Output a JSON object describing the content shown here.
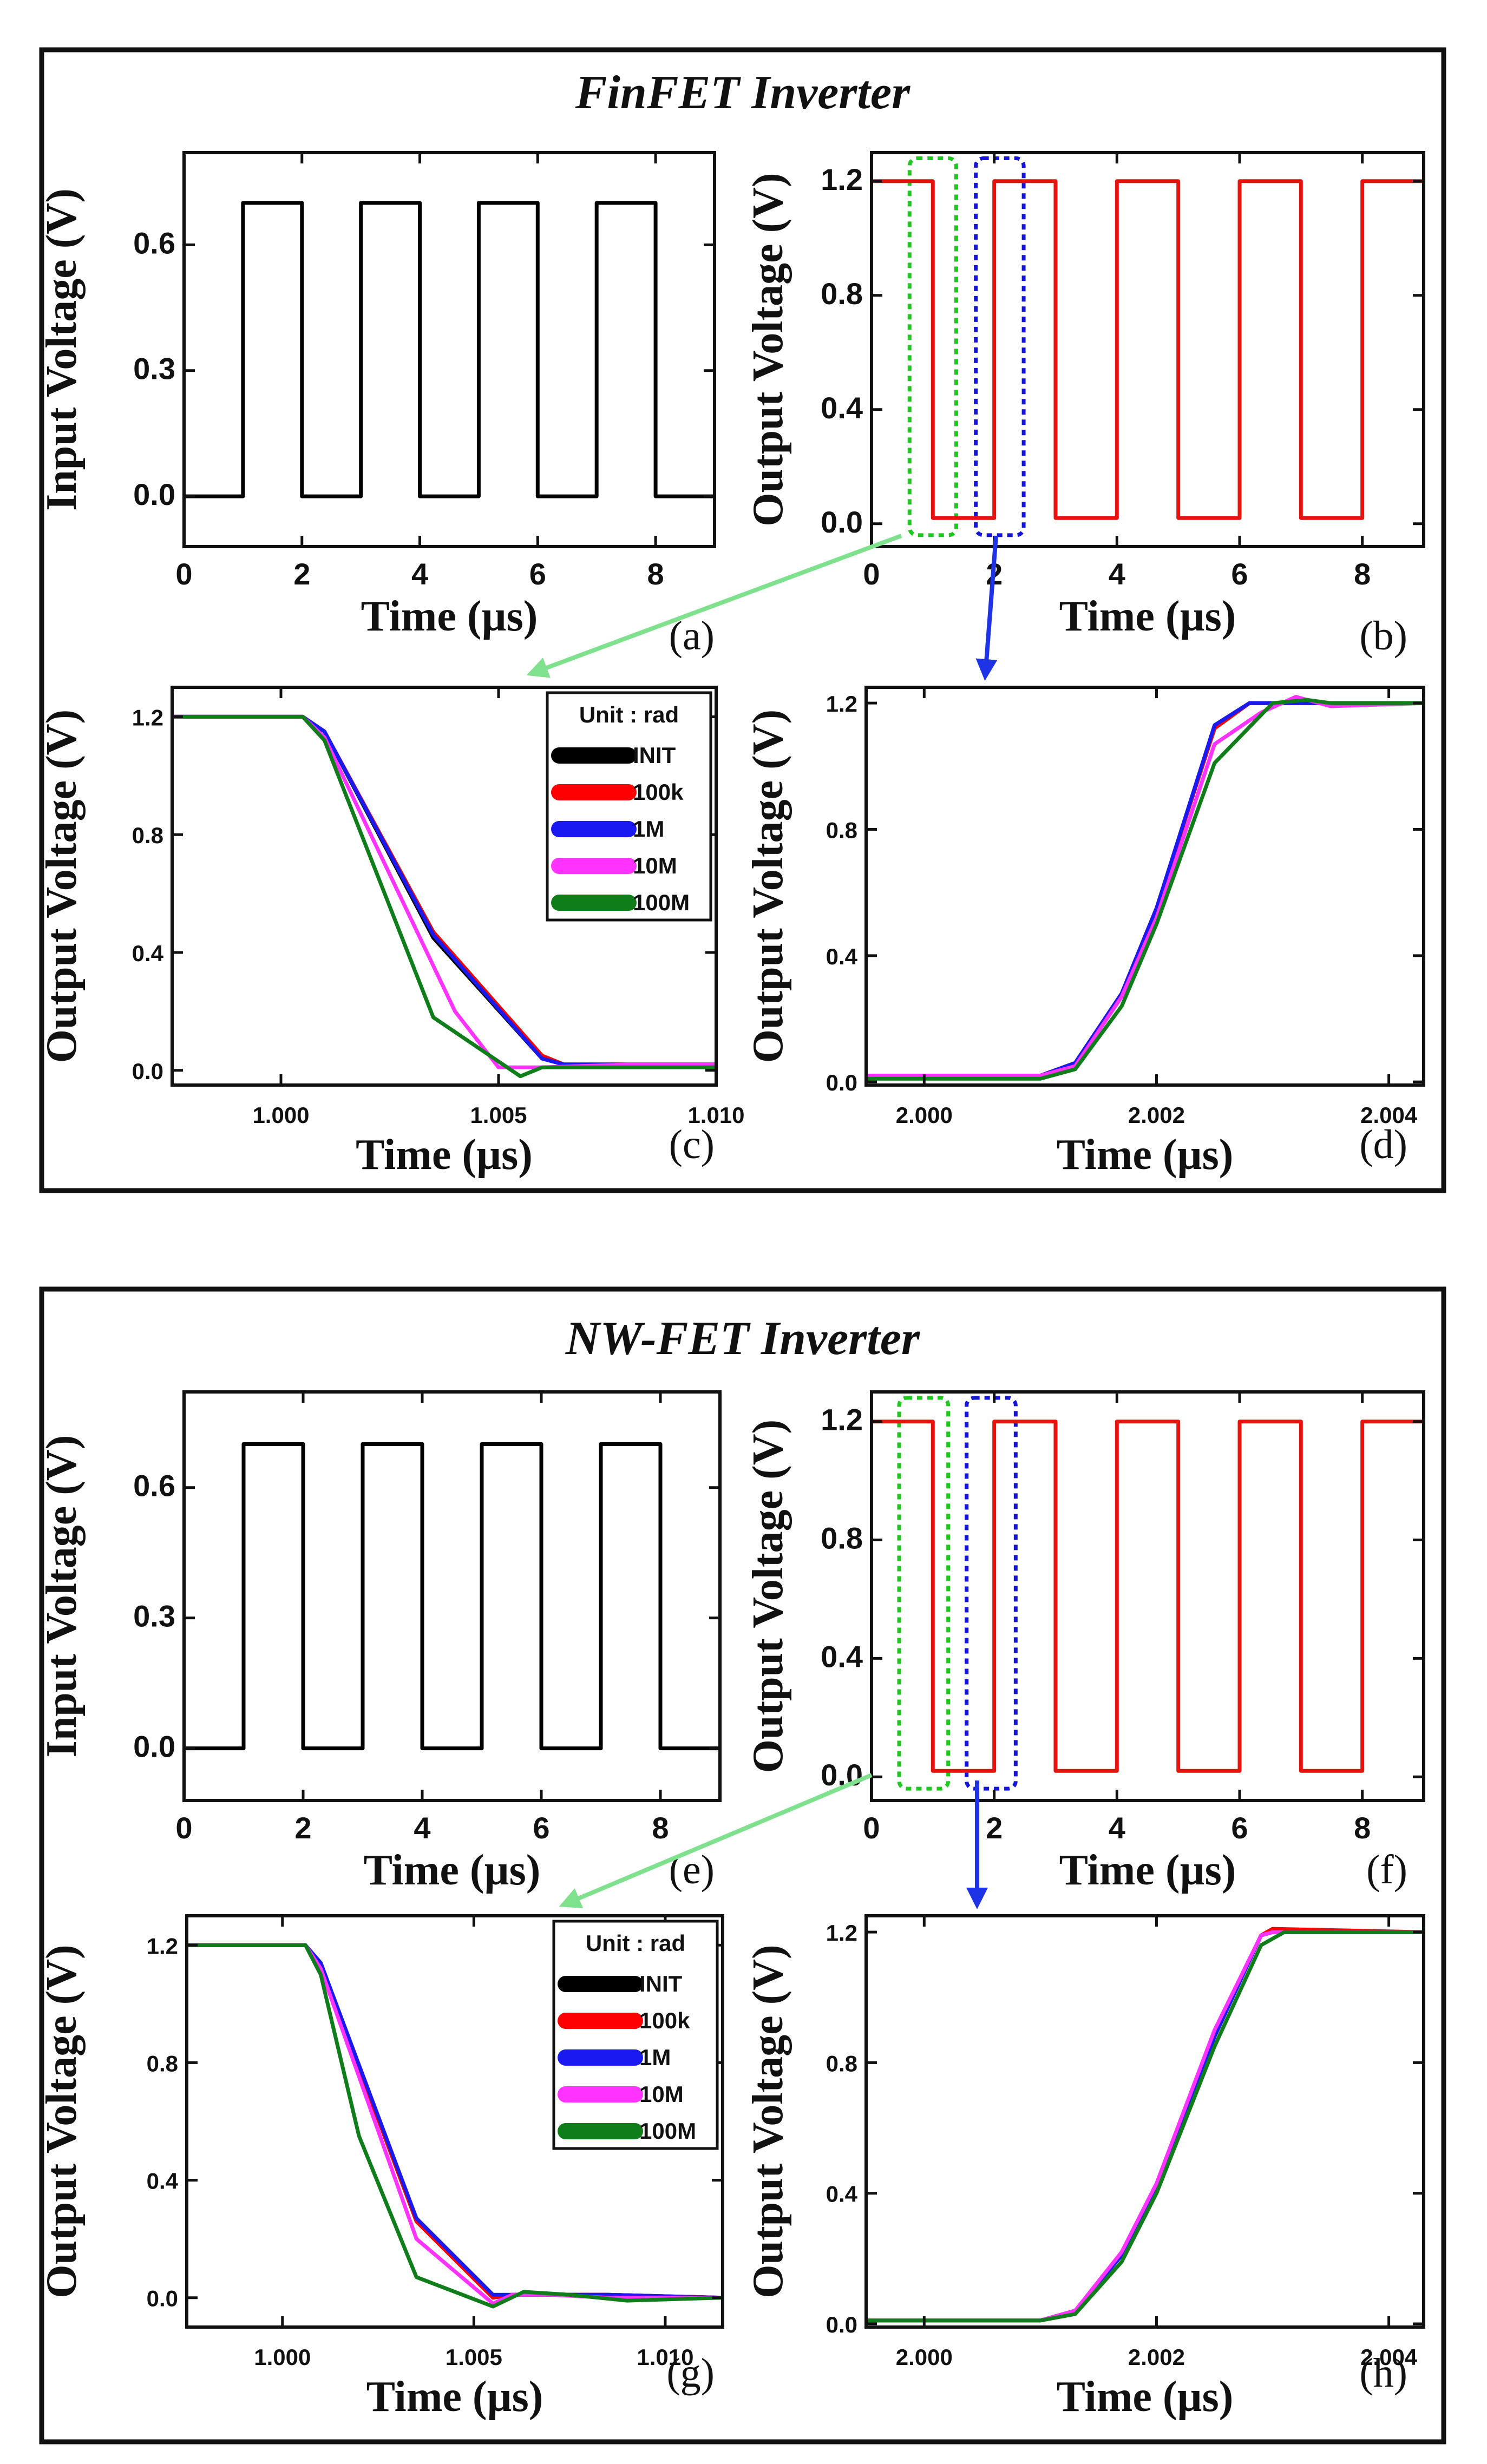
{
  "sections": [
    {
      "title": "FinFET Inverter"
    },
    {
      "title": "NW-FET Inverter"
    }
  ],
  "colors": {
    "input": "#000000",
    "output": "#e8130f",
    "zoom_fall_box": "#1ec81e",
    "zoom_rise_box": "#1515d8",
    "arrow_fall": "#7fe08d",
    "arrow_rise": "#1f33e6"
  },
  "legend": {
    "title": "Unit : rad",
    "entries": [
      {
        "name": "INIT",
        "color": "#000000"
      },
      {
        "name": "100k",
        "color": "#ff0000"
      },
      {
        "name": "1M",
        "color": "#1a1af0"
      },
      {
        "name": "10M",
        "color": "#ff33ff"
      },
      {
        "name": "100M",
        "color": "#0f7d19"
      }
    ]
  },
  "chart_data": [
    {
      "panel": "(a)",
      "type": "line",
      "xlabel": "Time (µs)",
      "ylabel": "Input Voltage (V)",
      "xlim": [
        0,
        9
      ],
      "ylim": [
        -0.12,
        0.82
      ],
      "xticks": [
        0,
        2,
        4,
        6,
        8
      ],
      "xtick_labels": [
        "0",
        "2",
        "4",
        "6",
        "8"
      ],
      "yticks": [
        0,
        0.3,
        0.6
      ],
      "ytick_labels": [
        "0.0",
        "0.3",
        "0.6"
      ],
      "series": [
        {
          "name": "Input",
          "color": "#000000",
          "x": [
            0,
            1,
            1,
            2,
            2,
            3,
            3,
            4,
            4,
            5,
            5,
            6,
            6,
            7,
            7,
            8,
            8,
            9
          ],
          "y": [
            0,
            0,
            0.7,
            0.7,
            0,
            0,
            0.7,
            0.7,
            0,
            0,
            0.7,
            0.7,
            0,
            0,
            0.7,
            0.7,
            0,
            0
          ]
        }
      ]
    },
    {
      "panel": "(b)",
      "type": "line",
      "xlabel": "Time (µs)",
      "ylabel": "Output Voltage (V)",
      "xlim": [
        0,
        9
      ],
      "ylim": [
        -0.08,
        1.3
      ],
      "xticks": [
        0,
        2,
        4,
        6,
        8
      ],
      "xtick_labels": [
        "0",
        "2",
        "4",
        "6",
        "8"
      ],
      "yticks": [
        0,
        0.4,
        0.8,
        1.2
      ],
      "ytick_labels": [
        "0.0",
        "0.4",
        "0.8",
        "1.2"
      ],
      "series": [
        {
          "name": "Output",
          "color": "#e8130f",
          "x": [
            0,
            1,
            1,
            2,
            2,
            3,
            3,
            4,
            4,
            5,
            5,
            6,
            6,
            7,
            7,
            8,
            8,
            9
          ],
          "y": [
            1.2,
            1.2,
            0.02,
            0.02,
            1.2,
            1.2,
            0.02,
            0.02,
            1.2,
            1.2,
            0.02,
            0.02,
            1.2,
            1.2,
            0.02,
            0.02,
            1.2,
            1.2
          ]
        }
      ],
      "zoom_boxes": [
        {
          "x": [
            0.62,
            1.38
          ],
          "y": [
            -0.04,
            1.28
          ],
          "target": "(c)"
        },
        {
          "x": [
            1.7,
            2.48
          ],
          "y": [
            -0.04,
            1.28
          ],
          "target": "(d)"
        }
      ]
    },
    {
      "panel": "(c)",
      "type": "line",
      "xlabel": "Time (µs)",
      "ylabel": "Output Voltage (V)",
      "xlim": [
        0.9975,
        1.01
      ],
      "ylim": [
        -0.05,
        1.3
      ],
      "xticks": [
        1.0,
        1.005,
        1.01
      ],
      "xtick_labels": [
        "1.000",
        "1.005",
        "1.010"
      ],
      "yticks": [
        0,
        0.4,
        0.8,
        1.2
      ],
      "ytick_labels": [
        "0.0",
        "0.4",
        "0.8",
        "1.2"
      ],
      "legend": true,
      "series": [
        {
          "name": "INIT",
          "color": "#000000",
          "x": [
            0.9975,
            1.0005,
            1.001,
            1.0035,
            1.006,
            1.0065,
            1.008,
            1.01
          ],
          "y": [
            1.2,
            1.2,
            1.15,
            0.45,
            0.04,
            0.02,
            0.02,
            0.02
          ]
        },
        {
          "name": "100k",
          "color": "#ff0000",
          "x": [
            0.9975,
            1.0005,
            1.001,
            1.0035,
            1.006,
            1.0065,
            1.008,
            1.01
          ],
          "y": [
            1.2,
            1.2,
            1.15,
            0.47,
            0.05,
            0.02,
            0.02,
            0.02
          ]
        },
        {
          "name": "1M",
          "color": "#1a1af0",
          "x": [
            0.9975,
            1.0005,
            1.001,
            1.0035,
            1.006,
            1.0065,
            1.008,
            1.01
          ],
          "y": [
            1.2,
            1.2,
            1.15,
            0.46,
            0.04,
            0.02,
            0.02,
            0.02
          ]
        },
        {
          "name": "10M",
          "color": "#ff33ff",
          "x": [
            0.9975,
            1.0005,
            1.001,
            1.004,
            1.005,
            1.006,
            1.008,
            1.01
          ],
          "y": [
            1.2,
            1.2,
            1.13,
            0.2,
            0.01,
            0.01,
            0.02,
            0.02
          ]
        },
        {
          "name": "100M",
          "color": "#0f7d19",
          "x": [
            0.9975,
            1.0005,
            1.001,
            1.0035,
            1.0055,
            1.006,
            1.008,
            1.01
          ],
          "y": [
            1.2,
            1.2,
            1.12,
            0.18,
            -0.02,
            0.01,
            0.01,
            0.01
          ]
        }
      ]
    },
    {
      "panel": "(d)",
      "type": "line",
      "xlabel": "Time (µs)",
      "ylabel": "Output Voltage (V)",
      "xlim": [
        1.9995,
        2.0043
      ],
      "ylim": [
        -0.01,
        1.25
      ],
      "xticks": [
        2.0,
        2.002,
        2.004
      ],
      "xtick_labels": [
        "2.000",
        "2.002",
        "2.004"
      ],
      "yticks": [
        0,
        0.4,
        0.8,
        1.2
      ],
      "ytick_labels": [
        "0.0",
        "0.4",
        "0.8",
        "1.2"
      ],
      "series": [
        {
          "name": "INIT",
          "color": "#000000",
          "x": [
            1.9995,
            2.001,
            2.0013,
            2.0017,
            2.002,
            2.0025,
            2.0028,
            2.003,
            2.0035,
            2.0043
          ],
          "y": [
            0.02,
            0.02,
            0.06,
            0.28,
            0.55,
            1.12,
            1.2,
            1.2,
            1.2,
            1.2
          ]
        },
        {
          "name": "100k",
          "color": "#ff0000",
          "x": [
            1.9995,
            2.001,
            2.0013,
            2.0017,
            2.002,
            2.0025,
            2.0028,
            2.003,
            2.0035,
            2.0043
          ],
          "y": [
            0.02,
            0.02,
            0.06,
            0.28,
            0.55,
            1.12,
            1.2,
            1.2,
            1.2,
            1.2
          ]
        },
        {
          "name": "1M",
          "color": "#1a1af0",
          "x": [
            1.9995,
            2.001,
            2.0013,
            2.0017,
            2.002,
            2.0025,
            2.0028,
            2.003,
            2.0035,
            2.0043
          ],
          "y": [
            0.02,
            0.02,
            0.06,
            0.28,
            0.55,
            1.13,
            1.2,
            1.2,
            1.2,
            1.2
          ]
        },
        {
          "name": "10M",
          "color": "#ff33ff",
          "x": [
            1.9995,
            2.001,
            2.0013,
            2.0017,
            2.002,
            2.0025,
            2.0029,
            2.0032,
            2.0035,
            2.0043
          ],
          "y": [
            0.02,
            0.02,
            0.05,
            0.27,
            0.52,
            1.07,
            1.17,
            1.22,
            1.19,
            1.2
          ]
        },
        {
          "name": "100M",
          "color": "#0f7d19",
          "x": [
            1.9995,
            2.001,
            2.0013,
            2.0017,
            2.002,
            2.0025,
            2.003,
            2.0033,
            2.0035,
            2.0043
          ],
          "y": [
            0.01,
            0.01,
            0.04,
            0.24,
            0.5,
            1.01,
            1.2,
            1.21,
            1.2,
            1.2
          ]
        }
      ]
    },
    {
      "panel": "(e)",
      "type": "line",
      "xlabel": "Time (µs)",
      "ylabel": "Input Voltage (V)",
      "xlim": [
        0,
        9
      ],
      "ylim": [
        -0.12,
        0.82
      ],
      "xticks": [
        0,
        2,
        4,
        6,
        8
      ],
      "xtick_labels": [
        "0",
        "2",
        "4",
        "6",
        "8"
      ],
      "yticks": [
        0,
        0.3,
        0.6
      ],
      "ytick_labels": [
        "0.0",
        "0.3",
        "0.6"
      ],
      "series": [
        {
          "name": "Input",
          "color": "#000000",
          "x": [
            0,
            1,
            1,
            2,
            2,
            3,
            3,
            4,
            4,
            5,
            5,
            6,
            6,
            7,
            7,
            8,
            8,
            9
          ],
          "y": [
            0,
            0,
            0.7,
            0.7,
            0,
            0,
            0.7,
            0.7,
            0,
            0,
            0.7,
            0.7,
            0,
            0,
            0.7,
            0.7,
            0,
            0
          ]
        }
      ]
    },
    {
      "panel": "(f)",
      "type": "line",
      "xlabel": "Time (µs)",
      "ylabel": "Output Voltage (V)",
      "xlim": [
        0,
        9
      ],
      "ylim": [
        -0.08,
        1.3
      ],
      "xticks": [
        0,
        2,
        4,
        6,
        8
      ],
      "xtick_labels": [
        "0",
        "2",
        "4",
        "6",
        "8"
      ],
      "yticks": [
        0,
        0.4,
        0.8,
        1.2
      ],
      "ytick_labels": [
        "0.0",
        "0.4",
        "0.8",
        "1.2"
      ],
      "series": [
        {
          "name": "Output",
          "color": "#e8130f",
          "x": [
            0,
            1,
            1,
            2,
            2,
            3,
            3,
            4,
            4,
            5,
            5,
            6,
            6,
            7,
            7,
            8,
            8,
            9
          ],
          "y": [
            1.2,
            1.2,
            0.02,
            0.02,
            1.2,
            1.2,
            0.02,
            0.02,
            1.2,
            1.2,
            0.02,
            0.02,
            1.2,
            1.2,
            0.02,
            0.02,
            1.2,
            1.2
          ]
        }
      ],
      "zoom_boxes": [
        {
          "x": [
            0.45,
            1.25
          ],
          "y": [
            -0.04,
            1.28
          ],
          "target": "(g)"
        },
        {
          "x": [
            1.55,
            2.35
          ],
          "y": [
            -0.04,
            1.28
          ],
          "target": "(h)"
        }
      ]
    },
    {
      "panel": "(g)",
      "type": "line",
      "xlabel": "Time (µs)",
      "ylabel": "Output Voltage (V)",
      "xlim": [
        0.9975,
        1.0115
      ],
      "ylim": [
        -0.1,
        1.3
      ],
      "xticks": [
        1.0,
        1.005,
        1.01
      ],
      "xtick_labels": [
        "1.000",
        "1.005",
        "1.010"
      ],
      "yticks": [
        0,
        0.4,
        0.8,
        1.2
      ],
      "ytick_labels": [
        "0.0",
        "0.4",
        "0.8",
        "1.2"
      ],
      "legend": true,
      "series": [
        {
          "name": "INIT",
          "color": "#000000",
          "x": [
            0.9975,
            1.0006,
            1.001,
            1.0035,
            1.0055,
            1.006,
            1.007,
            1.0085,
            1.0115
          ],
          "y": [
            1.2,
            1.2,
            1.13,
            0.26,
            0.0,
            0.01,
            0.01,
            0.01,
            0.0
          ]
        },
        {
          "name": "100k",
          "color": "#ff0000",
          "x": [
            0.9975,
            1.0006,
            1.001,
            1.0035,
            1.0055,
            1.006,
            1.007,
            1.0085,
            1.0115
          ],
          "y": [
            1.2,
            1.2,
            1.13,
            0.26,
            0.0,
            0.01,
            0.01,
            0.01,
            0.0
          ]
        },
        {
          "name": "1M",
          "color": "#1a1af0",
          "x": [
            0.9975,
            1.0006,
            1.001,
            1.0035,
            1.0055,
            1.006,
            1.007,
            1.0085,
            1.0115
          ],
          "y": [
            1.2,
            1.2,
            1.14,
            0.27,
            0.01,
            0.01,
            0.01,
            0.01,
            0.0
          ]
        },
        {
          "name": "10M",
          "color": "#ff33ff",
          "x": [
            0.9975,
            1.0006,
            1.001,
            1.0035,
            1.0055,
            1.006,
            1.007,
            1.0085,
            1.0115
          ],
          "y": [
            1.2,
            1.2,
            1.12,
            0.2,
            -0.02,
            0.01,
            0.01,
            0.0,
            0.0
          ]
        },
        {
          "name": "100M",
          "color": "#0f7d19",
          "x": [
            0.9975,
            1.0006,
            1.001,
            1.002,
            1.0035,
            1.0055,
            1.0063,
            1.0075,
            1.009,
            1.0115
          ],
          "y": [
            1.2,
            1.2,
            1.1,
            0.55,
            0.07,
            -0.03,
            0.02,
            0.01,
            -0.01,
            0.0
          ]
        }
      ]
    },
    {
      "panel": "(h)",
      "type": "line",
      "xlabel": "Time (µs)",
      "ylabel": "Output Voltage (V)",
      "xlim": [
        1.9995,
        2.0043
      ],
      "ylim": [
        -0.01,
        1.25
      ],
      "xticks": [
        2.0,
        2.002,
        2.004
      ],
      "xtick_labels": [
        "2.000",
        "2.002",
        "2.004"
      ],
      "yticks": [
        0,
        0.4,
        0.8,
        1.2
      ],
      "ytick_labels": [
        "0.0",
        "0.4",
        "0.8",
        "1.2"
      ],
      "series": [
        {
          "name": "INIT",
          "color": "#000000",
          "x": [
            1.9995,
            2.001,
            2.0013,
            2.0017,
            2.002,
            2.0025,
            2.0029,
            2.003,
            2.0043
          ],
          "y": [
            0.01,
            0.01,
            0.04,
            0.21,
            0.42,
            0.88,
            1.19,
            1.2,
            1.2
          ]
        },
        {
          "name": "100k",
          "color": "#ff0000",
          "x": [
            1.9995,
            2.001,
            2.0013,
            2.0017,
            2.002,
            2.0025,
            2.0029,
            2.003,
            2.0043
          ],
          "y": [
            0.01,
            0.01,
            0.04,
            0.21,
            0.42,
            0.88,
            1.19,
            1.21,
            1.2
          ]
        },
        {
          "name": "1M",
          "color": "#1a1af0",
          "x": [
            1.9995,
            2.001,
            2.0013,
            2.0017,
            2.002,
            2.0025,
            2.0029,
            2.003,
            2.0043
          ],
          "y": [
            0.01,
            0.01,
            0.04,
            0.21,
            0.42,
            0.88,
            1.19,
            1.2,
            1.2
          ]
        },
        {
          "name": "10M",
          "color": "#ff33ff",
          "x": [
            1.9995,
            2.001,
            2.0013,
            2.0017,
            2.002,
            2.0025,
            2.0029,
            2.003,
            2.0043
          ],
          "y": [
            0.01,
            0.01,
            0.04,
            0.22,
            0.43,
            0.9,
            1.19,
            1.2,
            1.2
          ]
        },
        {
          "name": "100M",
          "color": "#0f7d19",
          "x": [
            1.9995,
            2.001,
            2.0013,
            2.0017,
            2.002,
            2.0025,
            2.0029,
            2.0031,
            2.0043
          ],
          "y": [
            0.01,
            0.01,
            0.03,
            0.19,
            0.4,
            0.85,
            1.16,
            1.2,
            1.2
          ]
        }
      ]
    }
  ]
}
